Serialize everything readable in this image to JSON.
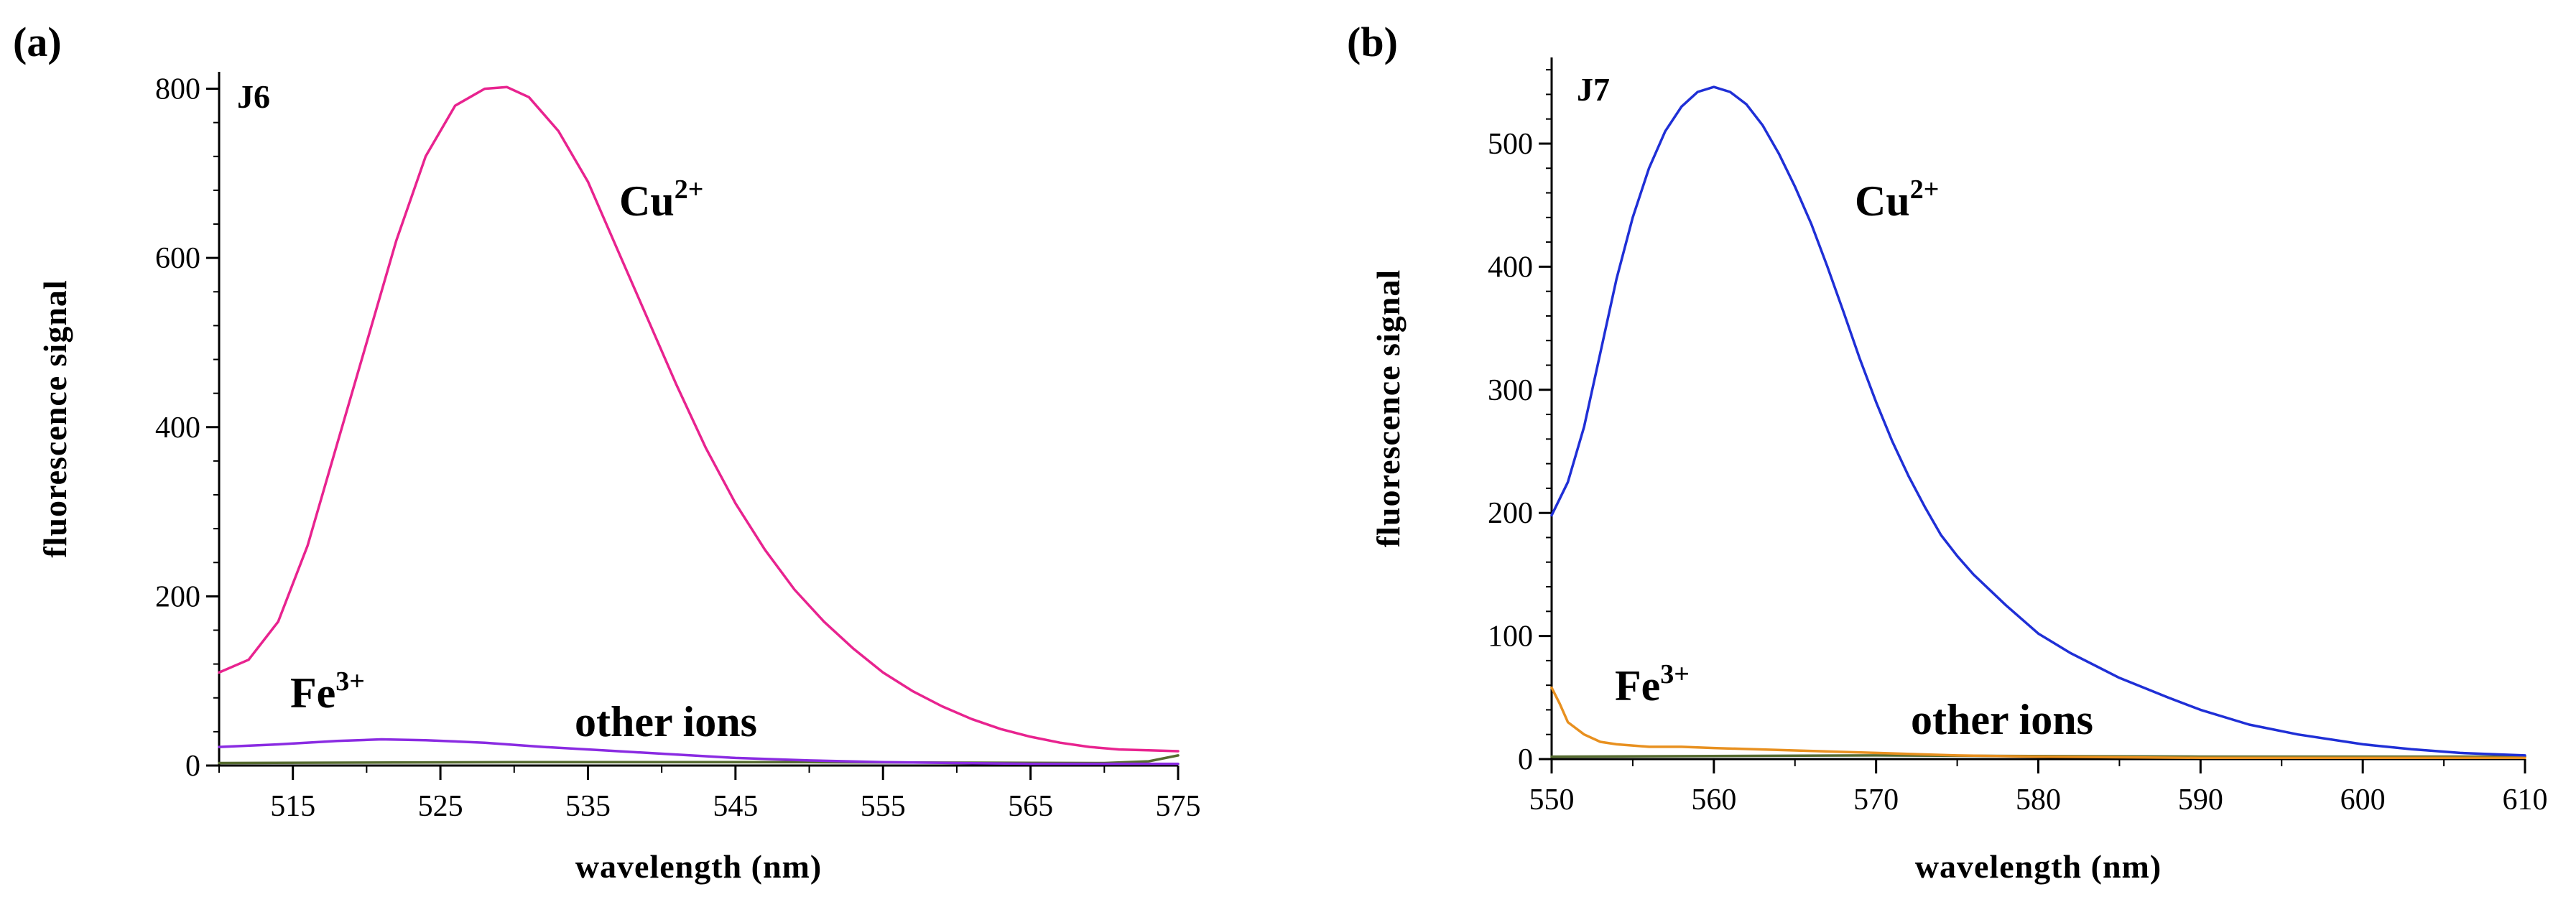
{
  "chart_data": [
    {
      "type": "line",
      "panel_label": "(a)",
      "compound_label": "J6",
      "xlabel": "wavelength (nm)",
      "ylabel": "fluorescence signal",
      "xlim": [
        510,
        575
      ],
      "ylim": [
        0,
        820
      ],
      "xticks": [
        515,
        525,
        535,
        545,
        555,
        565,
        575
      ],
      "yticks": [
        0,
        200,
        400,
        600,
        800
      ],
      "series": [
        {
          "name": "Cu2+",
          "label_base": "Cu",
          "label_sup": "2+",
          "color": "#e8238f",
          "x": [
            510,
            512,
            514,
            516,
            518,
            520,
            522,
            524,
            526,
            528,
            529.5,
            531,
            533,
            535,
            537,
            539,
            541,
            543,
            545,
            547,
            549,
            551,
            553,
            555,
            557,
            559,
            561,
            563,
            565,
            567,
            569,
            571,
            573,
            575
          ],
          "y": [
            110,
            125,
            170,
            260,
            380,
            500,
            620,
            720,
            780,
            800,
            802,
            790,
            750,
            690,
            610,
            530,
            450,
            375,
            310,
            255,
            208,
            170,
            138,
            110,
            88,
            70,
            55,
            43,
            34,
            27,
            22,
            19,
            18,
            17
          ]
        },
        {
          "name": "Fe3+",
          "label_base": "Fe",
          "label_sup": "3+",
          "color": "#8a2be2",
          "x": [
            510,
            514,
            518,
            521,
            524,
            528,
            532,
            536,
            540,
            545,
            550,
            555,
            560,
            565,
            570,
            575
          ],
          "y": [
            22,
            25,
            29,
            31,
            30,
            27,
            22,
            18,
            14,
            9,
            6,
            4,
            3,
            2,
            2,
            2
          ]
        },
        {
          "name": "other ions",
          "label_base": "other ions",
          "label_sup": "",
          "color": "#556b2f",
          "x": [
            510,
            530,
            550,
            570,
            573,
            575
          ],
          "y": [
            3,
            4,
            4,
            3,
            5,
            12
          ]
        }
      ]
    },
    {
      "type": "line",
      "panel_label": "(b)",
      "compound_label": "J7",
      "xlabel": "wavelength (nm)",
      "ylabel": "fluorescence signal",
      "xlim": [
        550,
        610
      ],
      "ylim": [
        0,
        570
      ],
      "xticks": [
        550,
        560,
        570,
        580,
        590,
        600,
        610
      ],
      "yticks": [
        0,
        100,
        200,
        300,
        400,
        500
      ],
      "series": [
        {
          "name": "Cu2+",
          "label_base": "Cu",
          "label_sup": "2+",
          "color": "#1f2fd6",
          "x": [
            550,
            551,
            552,
            553,
            554,
            555,
            556,
            557,
            558,
            559,
            560,
            561,
            562,
            563,
            564,
            565,
            566,
            567,
            568,
            569,
            570,
            571,
            572,
            573,
            574,
            575,
            576,
            578,
            580,
            582,
            585,
            588,
            590,
            593,
            596,
            600,
            603,
            606,
            610
          ],
          "y": [
            198,
            225,
            270,
            330,
            390,
            440,
            480,
            510,
            530,
            542,
            546,
            542,
            532,
            515,
            492,
            465,
            435,
            400,
            363,
            325,
            290,
            258,
            230,
            205,
            182,
            165,
            150,
            125,
            102,
            86,
            66,
            50,
            40,
            28,
            20,
            12,
            8,
            5,
            3
          ]
        },
        {
          "name": "Fe3+",
          "label_base": "Fe",
          "label_sup": "3+",
          "color": "#e8901f",
          "x": [
            550,
            550.5,
            551,
            552,
            553,
            554,
            556,
            558,
            560,
            565,
            570,
            575,
            580,
            590,
            600,
            610
          ],
          "y": [
            58,
            45,
            30,
            20,
            14,
            12,
            10,
            10,
            9,
            7,
            5,
            3,
            2,
            1,
            1,
            1
          ]
        },
        {
          "name": "other ions",
          "label_base": "other ions",
          "label_sup": "",
          "color": "#556b2f",
          "x": [
            550,
            570,
            590,
            610
          ],
          "y": [
            2,
            3,
            2,
            2
          ]
        }
      ]
    }
  ]
}
